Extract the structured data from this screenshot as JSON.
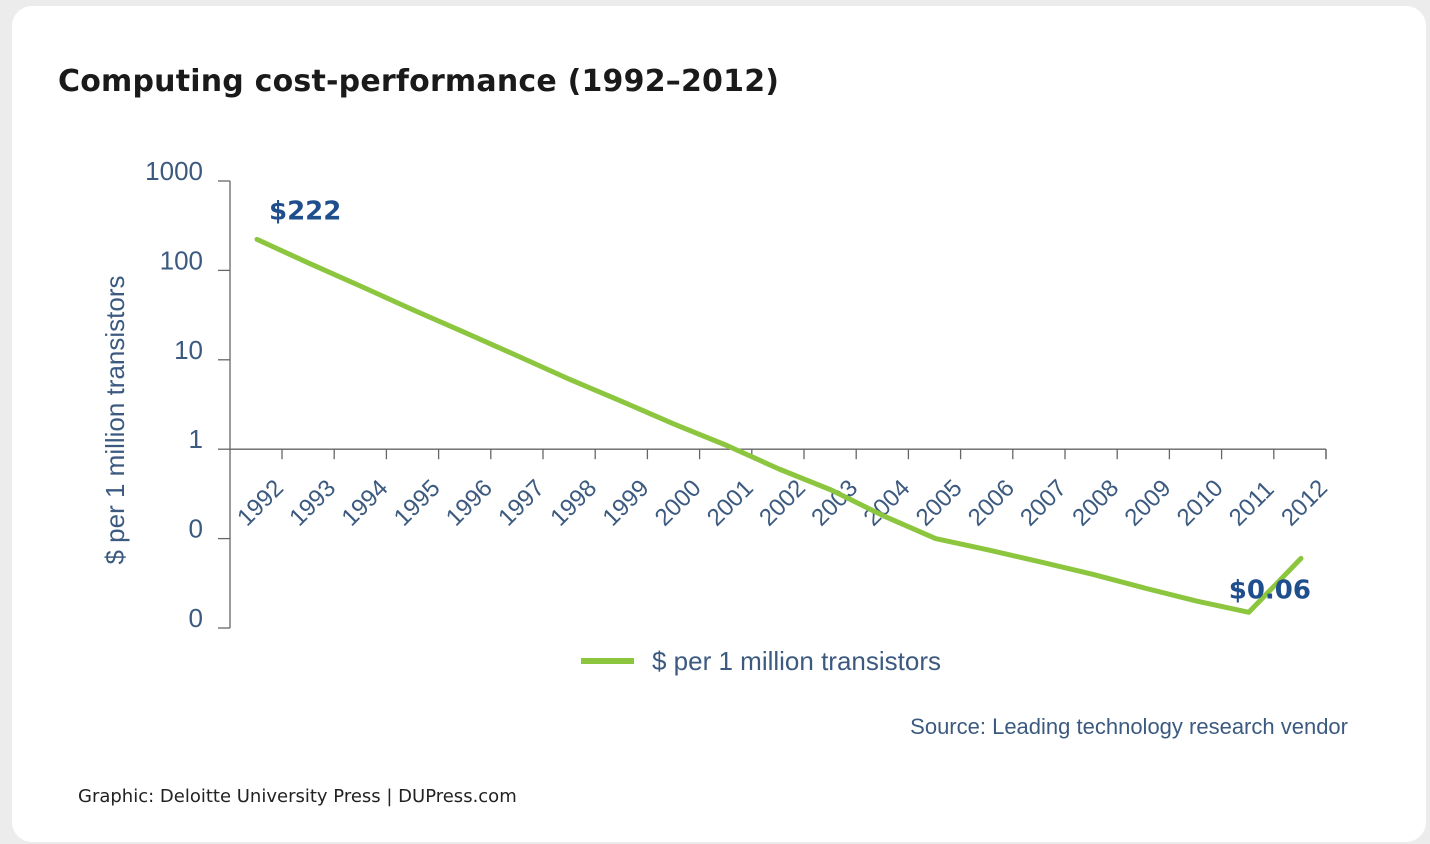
{
  "title": "Computing cost-performance (1992–2012)",
  "source": "Source: Leading technology research vendor",
  "credit": "Graphic: Deloitte University Press  |  DUPress.com",
  "colors": {
    "line": "#8cc63f",
    "axis": "#666666",
    "tick_label": "#3c5a80",
    "data_label": "#1f4e8c"
  },
  "chart_data": {
    "type": "line",
    "title": "Computing cost-performance (1992–2012)",
    "ylabel": "$ per 1 million transistors",
    "yscale": "log",
    "y_ticks": [
      {
        "value": 1000,
        "label": "1000"
      },
      {
        "value": 100,
        "label": "100"
      },
      {
        "value": 10,
        "label": "10"
      },
      {
        "value": 1,
        "label": "1"
      },
      {
        "value": 0.1,
        "label": "0"
      },
      {
        "value": 0.01,
        "label": "0"
      }
    ],
    "ylim": [
      0.01,
      1000
    ],
    "grid": false,
    "legend_position": "bottom",
    "categories": [
      "1992",
      "1993",
      "1994",
      "1995",
      "1996",
      "1997",
      "1998",
      "1999",
      "2000",
      "2001",
      "2002",
      "2003",
      "2004",
      "2005",
      "2006",
      "2007",
      "2008",
      "2009",
      "2010",
      "2011",
      "2012"
    ],
    "series": [
      {
        "name": "$ per 1 million transistors",
        "values": [
          222,
          120,
          66,
          36,
          20,
          11,
          6,
          3.4,
          1.9,
          1.1,
          0.6,
          0.35,
          0.18,
          0.1,
          0.075,
          0.055,
          0.04,
          0.028,
          0.02,
          0.015,
          0.06
        ]
      }
    ],
    "annotations": [
      {
        "text": "$222",
        "category": "1992",
        "position": "above"
      },
      {
        "text": "$0.06",
        "category": "2012",
        "position": "below"
      }
    ]
  }
}
